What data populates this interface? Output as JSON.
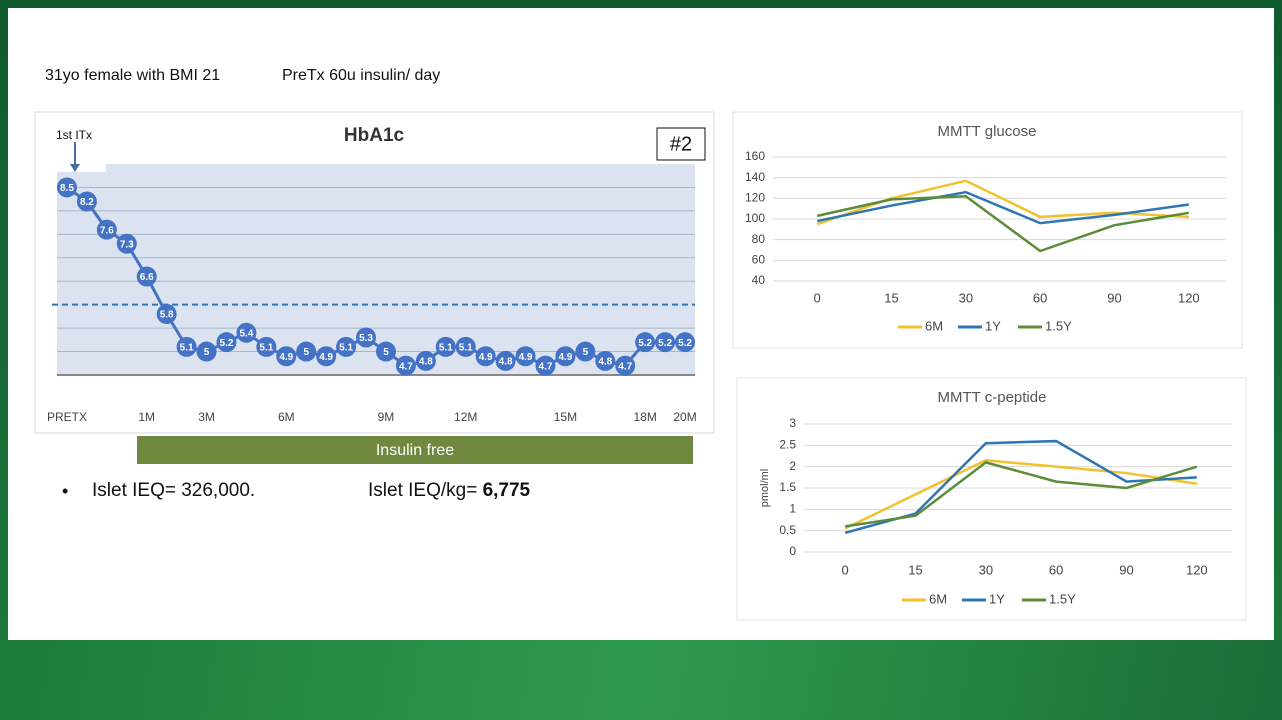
{
  "header": {
    "patient": "31yo female with BMI 21",
    "pretx": "PreTx 60u insulin/ day"
  },
  "banner": "Insulin free",
  "bullet": {
    "islet_ieq": "Islet IEQ= 326,000.",
    "ieq_per_kg_label": "Islet IEQ/kg=",
    "ieq_per_kg_value": "6,775"
  },
  "chart_data": [
    {
      "type": "line",
      "title": "HbA1c",
      "color": "#4472c4",
      "data_labels": true,
      "annotations": [
        "1st ITx",
        "#2"
      ],
      "categories": [
        "PRETX",
        null,
        null,
        null,
        "1M",
        null,
        null,
        "3M",
        null,
        null,
        null,
        "6M",
        null,
        null,
        null,
        null,
        "9M",
        null,
        null,
        null,
        "12M",
        null,
        null,
        null,
        null,
        "15M",
        null,
        null,
        null,
        "18M",
        null,
        "20M"
      ],
      "values": [
        8.5,
        8.2,
        7.6,
        7.3,
        6.6,
        5.8,
        5.1,
        5,
        5.2,
        5.4,
        5.1,
        4.9,
        5,
        4.9,
        5.1,
        5.3,
        5,
        4.7,
        4.8,
        5.1,
        5.1,
        4.9,
        4.8,
        4.9,
        4.7,
        4.9,
        5,
        4.8,
        4.7,
        5.2,
        5.2,
        5.2
      ],
      "ylim": [
        4.5,
        9
      ],
      "gridlines": [
        4.5,
        5,
        5.5,
        6.5,
        7,
        7.5,
        8,
        8.5
      ],
      "reference_line": {
        "value": 6,
        "color": "#2e75b6",
        "style": "dashed"
      }
    },
    {
      "type": "line",
      "title": "MMTT glucose",
      "legend": "bottom",
      "categories": [
        "0",
        "15",
        "30",
        "60",
        "90",
        "120"
      ],
      "series": [
        {
          "name": "6M",
          "color": "#f2c12e",
          "values": [
            95,
            120,
            137,
            102,
            106,
            102
          ]
        },
        {
          "name": "1Y",
          "color": "#2e75b6",
          "values": [
            98,
            113,
            126,
            96,
            104,
            114
          ]
        },
        {
          "name": "1.5Y",
          "color": "#5b8c3a",
          "values": [
            103,
            119,
            122,
            69,
            94,
            106
          ]
        }
      ],
      "ylim": [
        40,
        160
      ],
      "yticks": [
        40,
        60,
        80,
        100,
        120,
        140,
        160
      ],
      "grid": true
    },
    {
      "type": "line",
      "title": "MMTT c-peptide",
      "y_label": "pmol/ml",
      "legend": "bottom",
      "categories": [
        "0",
        "15",
        "30",
        "60",
        "90",
        "120"
      ],
      "series": [
        {
          "name": "6M",
          "color": "#f2c12e",
          "values": [
            0.55,
            1.35,
            2.15,
            2.0,
            1.85,
            1.6
          ]
        },
        {
          "name": "1Y",
          "color": "#2e75b6",
          "values": [
            0.45,
            0.9,
            2.55,
            2.6,
            1.65,
            1.75
          ]
        },
        {
          "name": "1.5Y",
          "color": "#5b8c3a",
          "values": [
            0.6,
            0.85,
            2.1,
            1.65,
            1.5,
            2.0
          ]
        }
      ],
      "ylim": [
        0,
        3
      ],
      "yticks": [
        0,
        0.5,
        1,
        1.5,
        2,
        2.5,
        3
      ],
      "grid": true
    }
  ]
}
